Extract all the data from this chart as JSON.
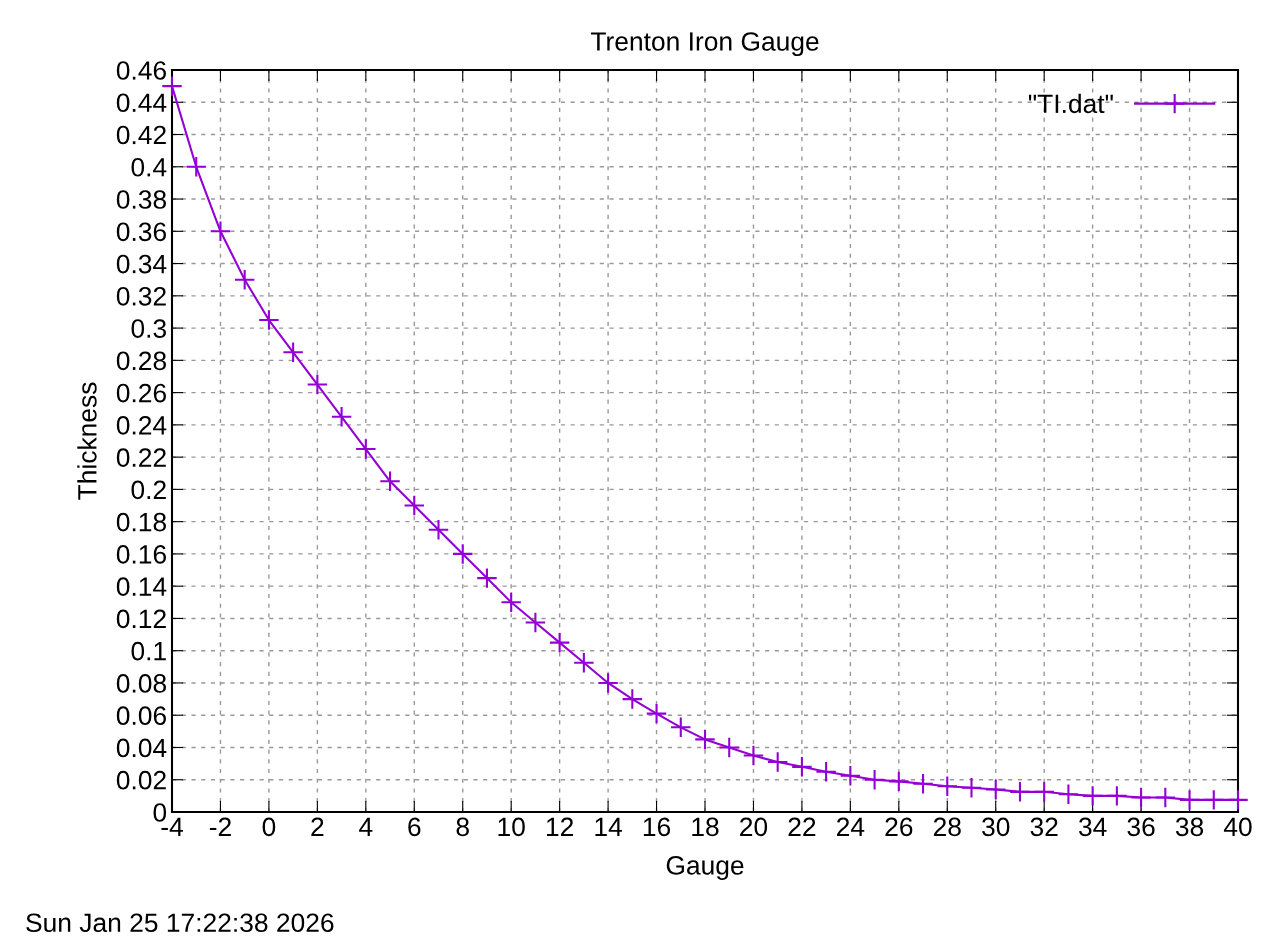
{
  "chart_data": {
    "type": "line",
    "title": "Trenton Iron Gauge",
    "xlabel": "Gauge",
    "ylabel": "Thickness",
    "annotations": [
      "Sun Jan 25 17:22:38 2026"
    ],
    "x": [
      -4,
      -3,
      -2,
      -1,
      0,
      1,
      2,
      3,
      4,
      5,
      6,
      7,
      8,
      9,
      10,
      11,
      12,
      13,
      14,
      15,
      16,
      17,
      18,
      19,
      20,
      21,
      22,
      23,
      24,
      25,
      26,
      27,
      28,
      29,
      30,
      31,
      32,
      33,
      34,
      35,
      36,
      37,
      38,
      39,
      40
    ],
    "series": [
      {
        "name": "\"TI.dat\"",
        "color": "#9400d3",
        "values": [
          0.45,
          0.4,
          0.36,
          0.33,
          0.305,
          0.285,
          0.265,
          0.245,
          0.225,
          0.205,
          0.19,
          0.175,
          0.16,
          0.145,
          0.13,
          0.1175,
          0.105,
          0.0925,
          0.08,
          0.07,
          0.061,
          0.0525,
          0.045,
          0.04,
          0.035,
          0.031,
          0.028,
          0.025,
          0.0225,
          0.02,
          0.019,
          0.0175,
          0.016,
          0.015,
          0.014,
          0.0125,
          0.0125,
          0.011,
          0.01,
          0.01,
          0.009,
          0.009,
          0.0075,
          0.0075,
          0.0075
        ]
      }
    ],
    "xlim": [
      -4,
      40
    ],
    "xticks": [
      -4,
      -2,
      0,
      2,
      4,
      6,
      8,
      10,
      12,
      14,
      16,
      18,
      20,
      22,
      24,
      26,
      28,
      30,
      32,
      34,
      36,
      38,
      40
    ],
    "ylim": [
      0,
      0.46
    ],
    "yticks": [
      0,
      0.02,
      0.04,
      0.06,
      0.08,
      0.1,
      0.12,
      0.14,
      0.16,
      0.18,
      0.2,
      0.22,
      0.24,
      0.26,
      0.28,
      0.3,
      0.32,
      0.34,
      0.36,
      0.38,
      0.4,
      0.42,
      0.44,
      0.46
    ],
    "grid": true,
    "legend": "top right",
    "marker": "cross",
    "line_style": "solid"
  }
}
